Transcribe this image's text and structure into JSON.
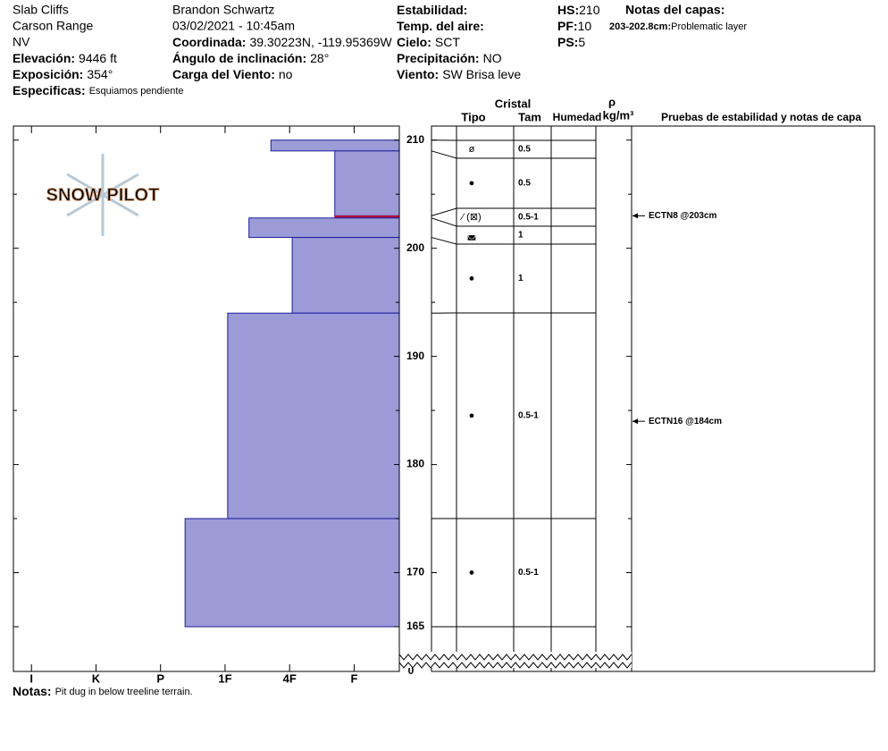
{
  "header": {
    "lines": [
      "Slab Cliffs",
      "Carson Range",
      "NV",
      "Brandon Schwartz",
      "03/02/2021 - 10:45am"
    ],
    "fields": [
      {
        "label": "Elevación:",
        "value": "9446 ft"
      },
      {
        "label": "Exposición:",
        "value": "354°"
      },
      {
        "label": "Especificas:",
        "value": "Esquiamos pendiente"
      },
      {
        "label": "Coordinada:",
        "value": "39.30223N, -119.95369W"
      },
      {
        "label": "Ángulo de inclinación:",
        "value": "28°"
      },
      {
        "label": "Carga del Viento:",
        "value": "no"
      },
      {
        "label": "Estabilidad:"
      },
      {
        "label": "Temp. del aire:"
      },
      {
        "label": "Cielo:",
        "value": "SCT"
      },
      {
        "label": "Precipitación:",
        "value": "NO"
      },
      {
        "label": "Viento:",
        "value": "SW Brisa leve"
      },
      {
        "label": "HS:",
        "value": 210
      },
      {
        "label": "PF:",
        "value": 10
      },
      {
        "label": "PS:",
        "value": 5
      }
    ],
    "notes_title": "Notas del capas:",
    "layer_notes": [
      {
        "label": "203-202.8cm:",
        "text": "Problematic layer"
      }
    ]
  },
  "chart_data": {
    "type": "snowpit",
    "logo": "SNOW PILOT",
    "ylim": [
      165,
      211.3
    ],
    "yticks": [
      165,
      170,
      180,
      190,
      200,
      210
    ],
    "yticks_minor": [
      175,
      185,
      195,
      205
    ],
    "ground_label": 0,
    "xlim": [
      0.3,
      6.28
    ],
    "x_reversed": true,
    "xticks": [
      {
        "value": 6,
        "label": "I"
      },
      {
        "value": 5,
        "label": "K"
      },
      {
        "value": 4,
        "label": "P"
      },
      {
        "value": 3,
        "label": "1F"
      },
      {
        "value": 2,
        "label": "4F"
      },
      {
        "value": 1,
        "label": "F"
      }
    ],
    "color": "#9b9bd8",
    "edge_color": "#1c1c9c",
    "layers": [
      {
        "top": 210,
        "bottom": 209,
        "hardness": 2.29,
        "grain": "ø",
        "size": "0.5"
      },
      {
        "top": 209,
        "bottom": 203,
        "hardness": 1.3,
        "grain": "●",
        "size": "0.5"
      },
      {
        "top": 203,
        "bottom": 202.8,
        "hardness": 1.3,
        "grain": "⁄ (⊠)",
        "size": "0.5-1",
        "color": "#b01040"
      },
      {
        "top": 202.8,
        "bottom": 201,
        "hardness": 2.63,
        "grain": "◛",
        "size": "1"
      },
      {
        "top": 201,
        "bottom": 194,
        "hardness": 1.96,
        "grain": "●",
        "size": "1"
      },
      {
        "top": 194,
        "bottom": 175,
        "hardness": 2.96,
        "grain": "●",
        "size": "0.5-1"
      },
      {
        "top": 175,
        "bottom": 165,
        "hardness": 3.62,
        "grain": "●",
        "size": "0.5-1"
      }
    ],
    "columns": {
      "crystal": "Cristal",
      "type": "Tipo",
      "size": "Tam",
      "moisture": "Humedad",
      "rho": "ρ",
      "density": "kg/m³",
      "tests": "Pruebas de estabilidad y notas de capa"
    },
    "tests": [
      {
        "label": "ECTN8 @203cm",
        "depth": 203
      },
      {
        "label": "ECTN16 @184cm",
        "depth": 184
      }
    ],
    "notes_label": "Notas:",
    "notes": "Pit dug in below treeline terrain."
  }
}
